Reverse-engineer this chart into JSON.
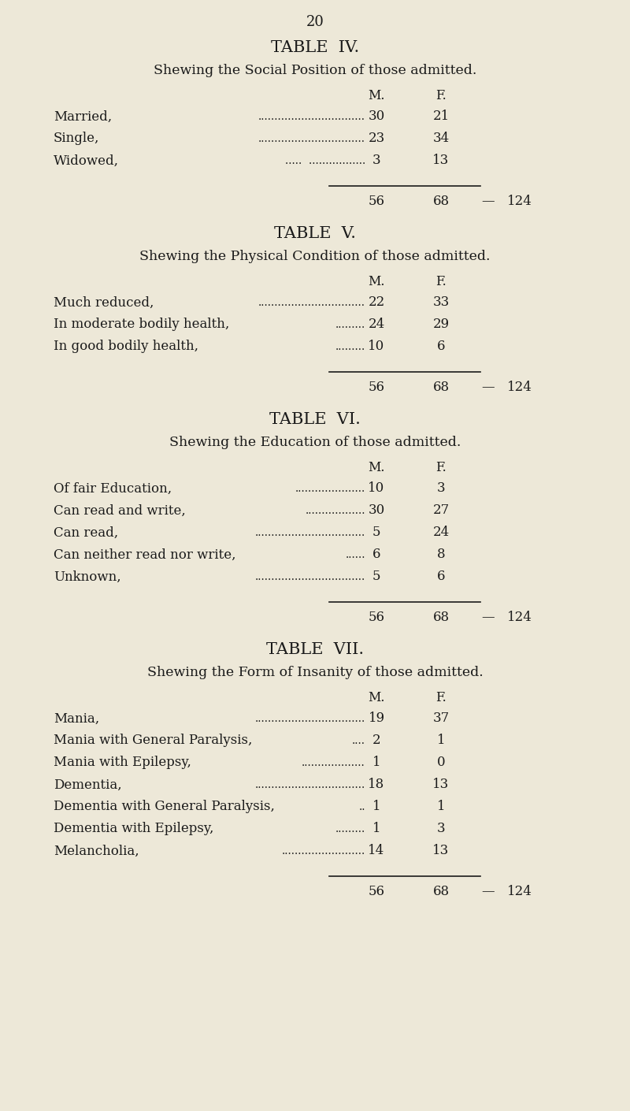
{
  "bg_color": "#ede8d8",
  "text_color": "#1a1a1a",
  "page_number": "20",
  "tables": [
    {
      "title": "TABLE  IV.",
      "subtitle": "Shewing the Social Position of those admitted.",
      "col_headers": [
        "M.",
        "F."
      ],
      "rows": [
        {
          "label": "Married,",
          "dots": "................................",
          "m": "30",
          "f": "21"
        },
        {
          "label": "Single,",
          "dots": "................................",
          "m": "23",
          "f": "34"
        },
        {
          "label": "Widowed,",
          "dots": ".....  .................",
          "m": "3",
          "f": "13"
        }
      ],
      "total_m": "56",
      "total_f": "68",
      "total": "124"
    },
    {
      "title": "TABLE  V.",
      "subtitle": "Shewing the Physical Condition of those admitted.",
      "col_headers": [
        "M.",
        "F."
      ],
      "rows": [
        {
          "label": "Much reduced,",
          "dots": "................................",
          "m": "22",
          "f": "33"
        },
        {
          "label": "In moderate bodily health,",
          "dots": ".........",
          "m": "24",
          "f": "29"
        },
        {
          "label": "In good bodily health,",
          "dots": ".........",
          "m": "10",
          "f": "6"
        }
      ],
      "total_m": "56",
      "total_f": "68",
      "total": "124"
    },
    {
      "title": "TABLE  VI.",
      "subtitle": "Shewing the Education of those admitted.",
      "col_headers": [
        "M.",
        "F."
      ],
      "rows": [
        {
          "label": "Of fair Education,",
          "dots": ".....................",
          "m": "10",
          "f": "3"
        },
        {
          "label": "Can read and write,",
          "dots": "..................",
          "m": "30",
          "f": "27"
        },
        {
          "label": "Can read,",
          "dots": ".................................",
          "m": "5",
          "f": "24"
        },
        {
          "label": "Can neither read nor write,",
          "dots": "......",
          "m": "6",
          "f": "8"
        },
        {
          "label": "Unknown,",
          "dots": ".................................",
          "m": "5",
          "f": "6"
        }
      ],
      "total_m": "56",
      "total_f": "68",
      "total": "124"
    },
    {
      "title": "TABLE  VII.",
      "subtitle": "Shewing the Form of Insanity of those admitted.",
      "col_headers": [
        "M.",
        "F."
      ],
      "rows": [
        {
          "label": "Mania,",
          "dots": ".................................",
          "m": "19",
          "f": "37"
        },
        {
          "label": "Mania with General Paralysis,",
          "dots": "....",
          "m": "2",
          "f": "1"
        },
        {
          "label": "Mania with Epilepsy,",
          "dots": "...................",
          "m": "1",
          "f": "0"
        },
        {
          "label": "Dementia,",
          "dots": ".................................",
          "m": "18",
          "f": "13"
        },
        {
          "label": "Dementia with General Paralysis,",
          "dots": "..",
          "m": "1",
          "f": "1"
        },
        {
          "label": "Dementia with Epilepsy,",
          "dots": ".........",
          "m": "1",
          "f": "3"
        },
        {
          "label": "Melancholia,",
          "dots": ".........................",
          "m": "14",
          "f": "13"
        }
      ],
      "total_m": "56",
      "total_f": "68",
      "total": "124"
    }
  ]
}
